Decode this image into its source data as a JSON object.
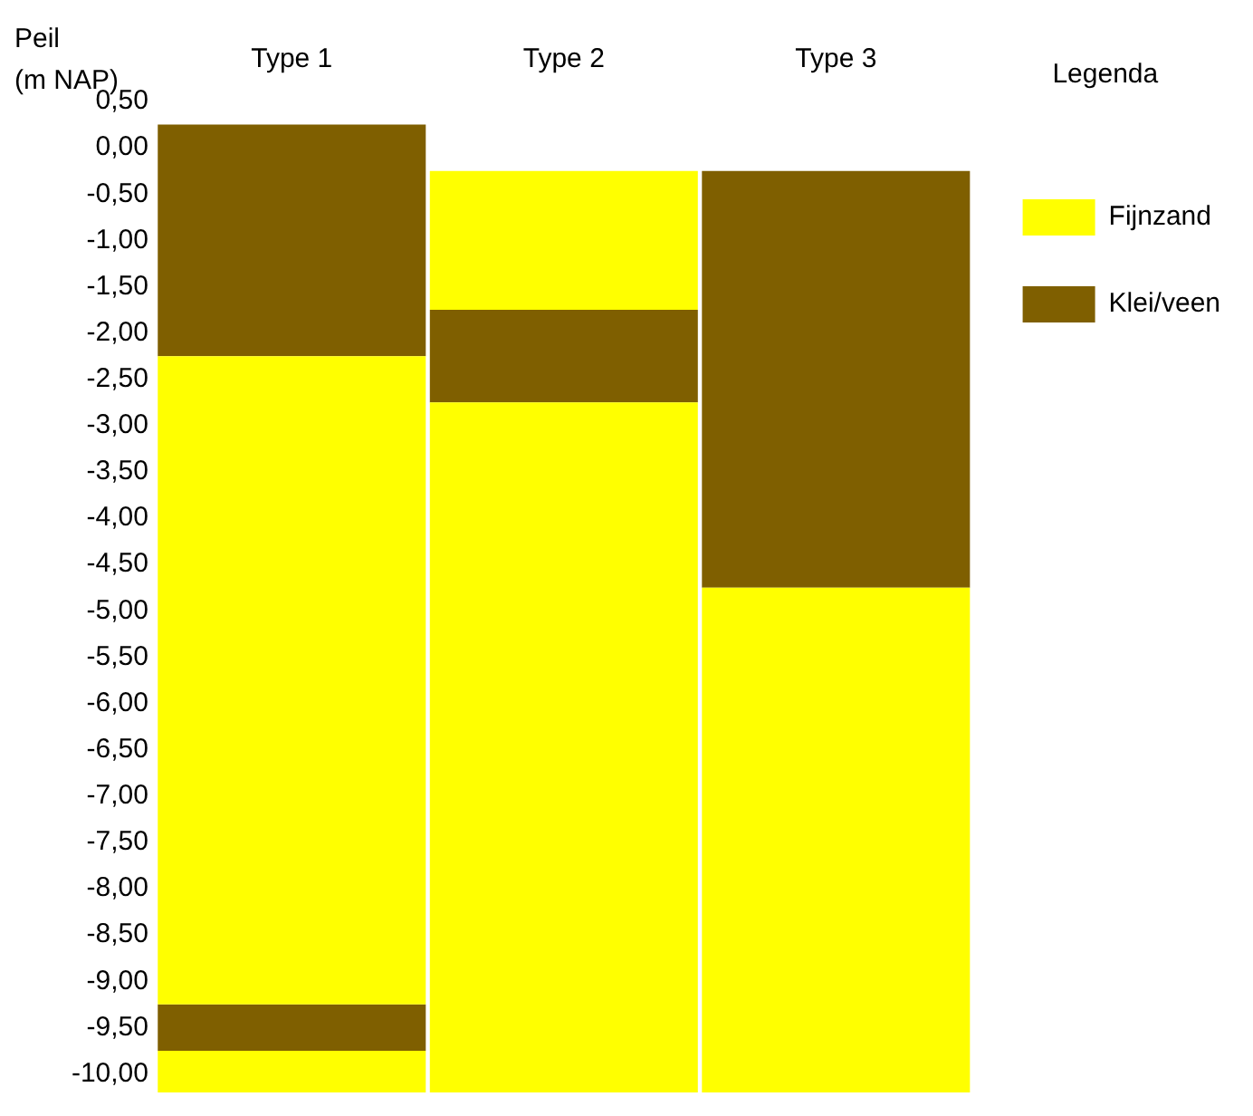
{
  "chart_data": {
    "type": "bar",
    "ylabel": "Peil\n(m NAP)",
    "legend_title": "Legenda",
    "categories": [
      "Type 1",
      "Type 2",
      "Type 3"
    ],
    "series": [
      {
        "name": "Fijnzand",
        "color": "#ffff00",
        "x": [
          "Type 1",
          "Type 1",
          "Type 2",
          "Type 2",
          "Type 3"
        ],
        "base": [
          -2.25,
          -9.75,
          -0.25,
          -2.75,
          -4.75
        ],
        "values": [
          -7.0,
          -0.45,
          -1.5,
          -7.45,
          -5.45
        ]
      },
      {
        "name": "Klei/veen",
        "color": "#7f5f00",
        "x": [
          "Type 1",
          "Type 1",
          "Type 2",
          "Type 3"
        ],
        "base": [
          0.25,
          -9.25,
          -1.75,
          -0.25
        ],
        "values": [
          -2.5,
          -0.5,
          -1.0,
          -4.5
        ]
      }
    ],
    "ylim": [
      -10.2,
      0.5
    ],
    "yticks": [
      {
        "value": 0.5,
        "label": "0,50"
      },
      {
        "value": 0,
        "label": "0,00"
      },
      {
        "value": -0.5,
        "label": "-0,50"
      },
      {
        "value": -1,
        "label": "-1,00"
      },
      {
        "value": -1.5,
        "label": "-1,50"
      },
      {
        "value": -2,
        "label": "-2,00"
      },
      {
        "value": -2.5,
        "label": "-2,50"
      },
      {
        "value": -3,
        "label": "-3,00"
      },
      {
        "value": -3.5,
        "label": "-3,50"
      },
      {
        "value": -4,
        "label": "-4,00"
      },
      {
        "value": -4.5,
        "label": "-4,50"
      },
      {
        "value": -5,
        "label": "-5,00"
      },
      {
        "value": -5.5,
        "label": "-5,50"
      },
      {
        "value": -6,
        "label": "-6,00"
      },
      {
        "value": -6.5,
        "label": "-6,50"
      },
      {
        "value": -7,
        "label": "-7,00"
      },
      {
        "value": -7.5,
        "label": "-7,50"
      },
      {
        "value": -8,
        "label": "-8,00"
      },
      {
        "value": -8.5,
        "label": "-8,50"
      },
      {
        "value": -9,
        "label": "-9,00"
      },
      {
        "value": -9.5,
        "label": "-9,50"
      },
      {
        "value": -10,
        "label": "-10,00"
      }
    ],
    "grid": false,
    "legend": "right"
  }
}
